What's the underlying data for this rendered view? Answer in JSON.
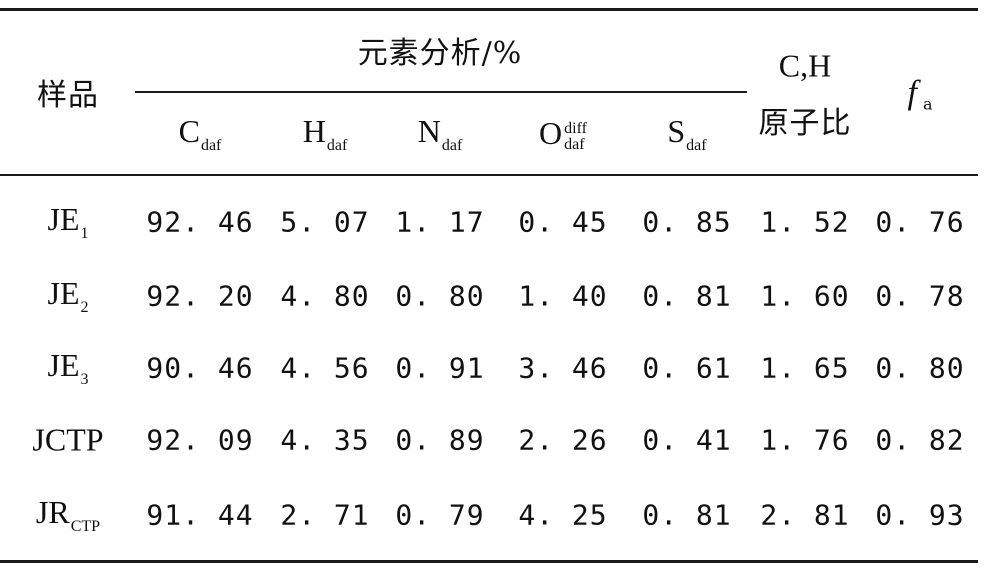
{
  "table": {
    "header": {
      "sample": "样品",
      "elemental_analysis": "元素分析/%",
      "ch_line1": "C,H",
      "ch_line2": "原子比",
      "fa_symbol": "f",
      "fa_sub": "a",
      "columns": [
        {
          "main": "C",
          "sub": "daf"
        },
        {
          "main": "H",
          "sub": "daf"
        },
        {
          "main": "N",
          "sub": "daf"
        },
        {
          "main": "O",
          "sup": "diff",
          "sub": "daf"
        },
        {
          "main": "S",
          "sub": "daf"
        }
      ]
    },
    "rows": [
      {
        "label": "JE",
        "label_sub": "1",
        "values": [
          "92.46",
          "5.07",
          "1.17",
          "0.45",
          "0.85",
          "1.52",
          "0.76"
        ]
      },
      {
        "label": "JE",
        "label_sub": "2",
        "values": [
          "92.20",
          "4.80",
          "0.80",
          "1.40",
          "0.81",
          "1.60",
          "0.78"
        ]
      },
      {
        "label": "JE",
        "label_sub": "3",
        "values": [
          "90.46",
          "4.56",
          "0.91",
          "3.46",
          "0.61",
          "1.65",
          "0.80"
        ]
      },
      {
        "label": "JCTP",
        "label_sub": "",
        "values": [
          "92.09",
          "4.35",
          "0.89",
          "2.26",
          "0.41",
          "1.76",
          "0.82"
        ]
      },
      {
        "label": "JR",
        "label_sub": "CTP",
        "values": [
          "91.44",
          "2.71",
          "0.79",
          "4.25",
          "0.81",
          "2.81",
          "0.93"
        ]
      }
    ]
  }
}
